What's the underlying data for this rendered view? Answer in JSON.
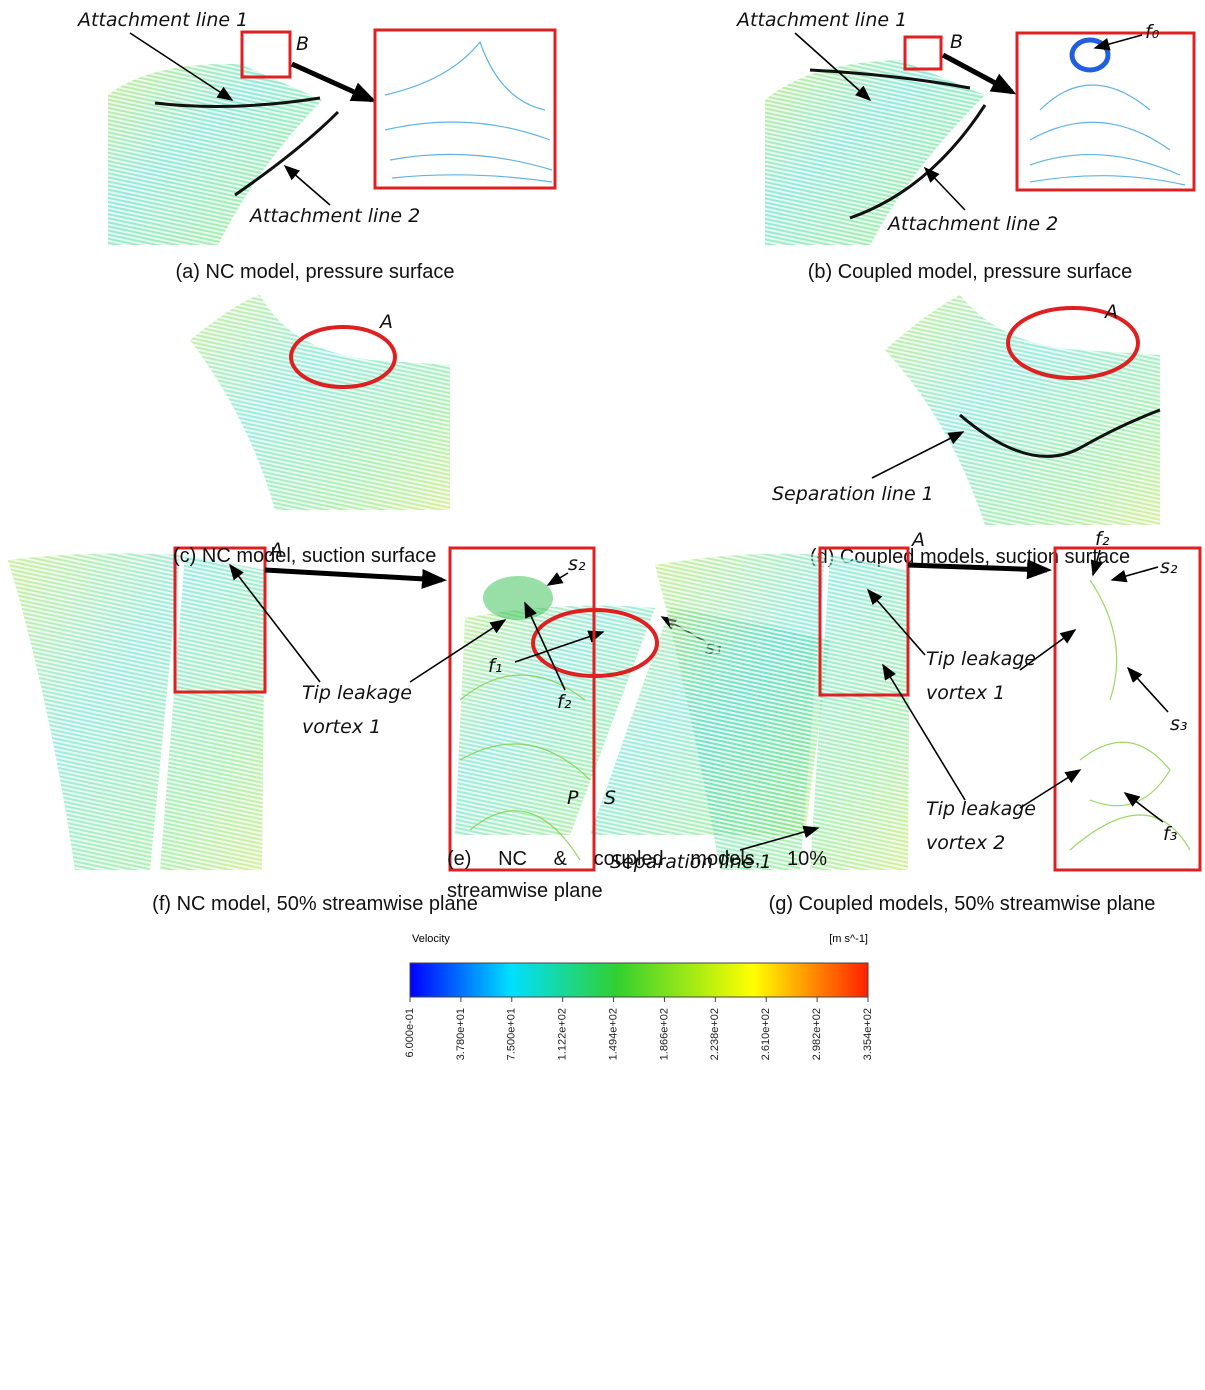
{
  "panels": [
    {
      "caption": "(a) NC model, pressure surface",
      "labels": [
        "Attachment line 1",
        "B",
        "Attachment line 2"
      ]
    },
    {
      "caption": "(b) Coupled model, pressure surface",
      "labels": [
        "Attachment line 1",
        "B",
        "f₀",
        "Attachment line 2"
      ]
    },
    {
      "caption": "(c) NC model, suction surface",
      "labels": [
        "A"
      ]
    },
    {
      "caption": "(d) Coupled models, suction surface",
      "labels": [
        "A",
        "Separation line 1"
      ]
    },
    {
      "caption": "(e) NC & coupled models, 10% streamwise plane",
      "labels": [
        "f₁",
        "s₁",
        "P",
        "S"
      ]
    },
    {
      "caption": "(f) NC model, 50% streamwise plane",
      "labels": [
        "A",
        "s₂",
        "f₂",
        "Tip leakage vortex 1"
      ]
    },
    {
      "caption": "(g) Coupled models, 50% streamwise plane",
      "labels": [
        "A",
        "f₂",
        "s₂",
        "s₃",
        "f₃",
        "Tip leakage vortex 1",
        "Tip leakage vortex 2",
        "Separation line 1"
      ]
    }
  ],
  "colorbar": {
    "title": "Velocity",
    "unit": "[m s^-1]",
    "range": [
      0.6,
      335.4
    ],
    "ticks": [
      {
        "value": 0.6,
        "label": "6.000e-01"
      },
      {
        "value": 37.8,
        "label": "3.780e+01"
      },
      {
        "value": 75.0,
        "label": "7.500e+01"
      },
      {
        "value": 112.2,
        "label": "1.122e+02"
      },
      {
        "value": 149.4,
        "label": "1.494e+02"
      },
      {
        "value": 186.6,
        "label": "1.866e+02"
      },
      {
        "value": 223.8,
        "label": "2.238e+02"
      },
      {
        "value": 261.0,
        "label": "2.610e+02"
      },
      {
        "value": 298.2,
        "label": "2.982e+02"
      },
      {
        "value": 335.4,
        "label": "3.354e+02"
      }
    ]
  }
}
